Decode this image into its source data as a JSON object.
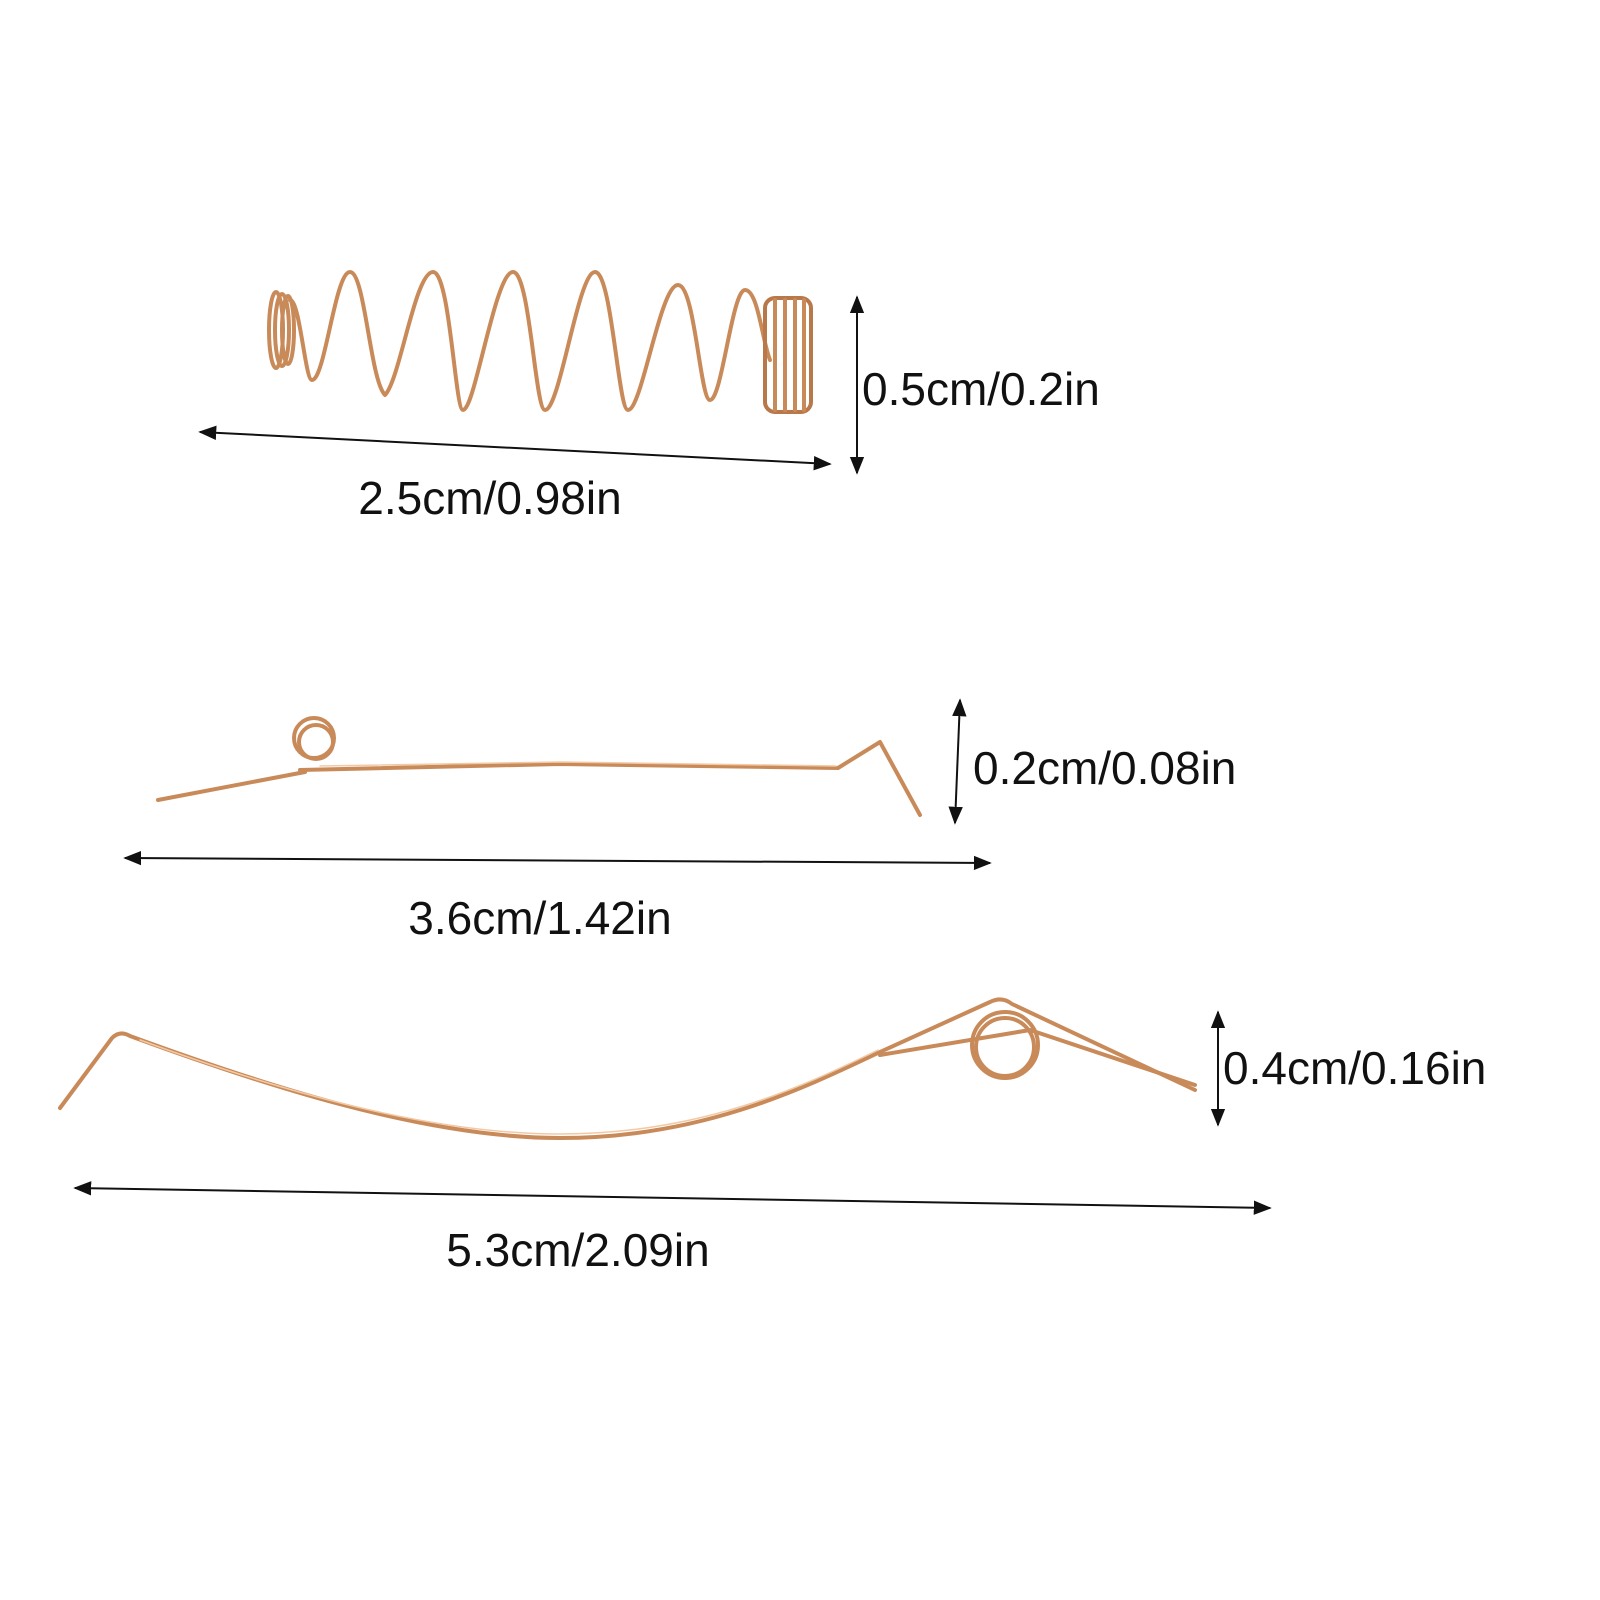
{
  "items": [
    {
      "name": "coil spring",
      "length_label": "2.5cm/0.98in",
      "height_label": "0.5cm/0.2in"
    },
    {
      "name": "short wire spring",
      "length_label": "3.6cm/1.42in",
      "height_label": "0.2cm/0.08in"
    },
    {
      "name": "long wire spring",
      "length_label": "5.3cm/2.09in",
      "height_label": "0.4cm/0.16in"
    }
  ],
  "colors": {
    "wire": "#c98a5a",
    "background": "#ffffff",
    "text": "#111111"
  }
}
